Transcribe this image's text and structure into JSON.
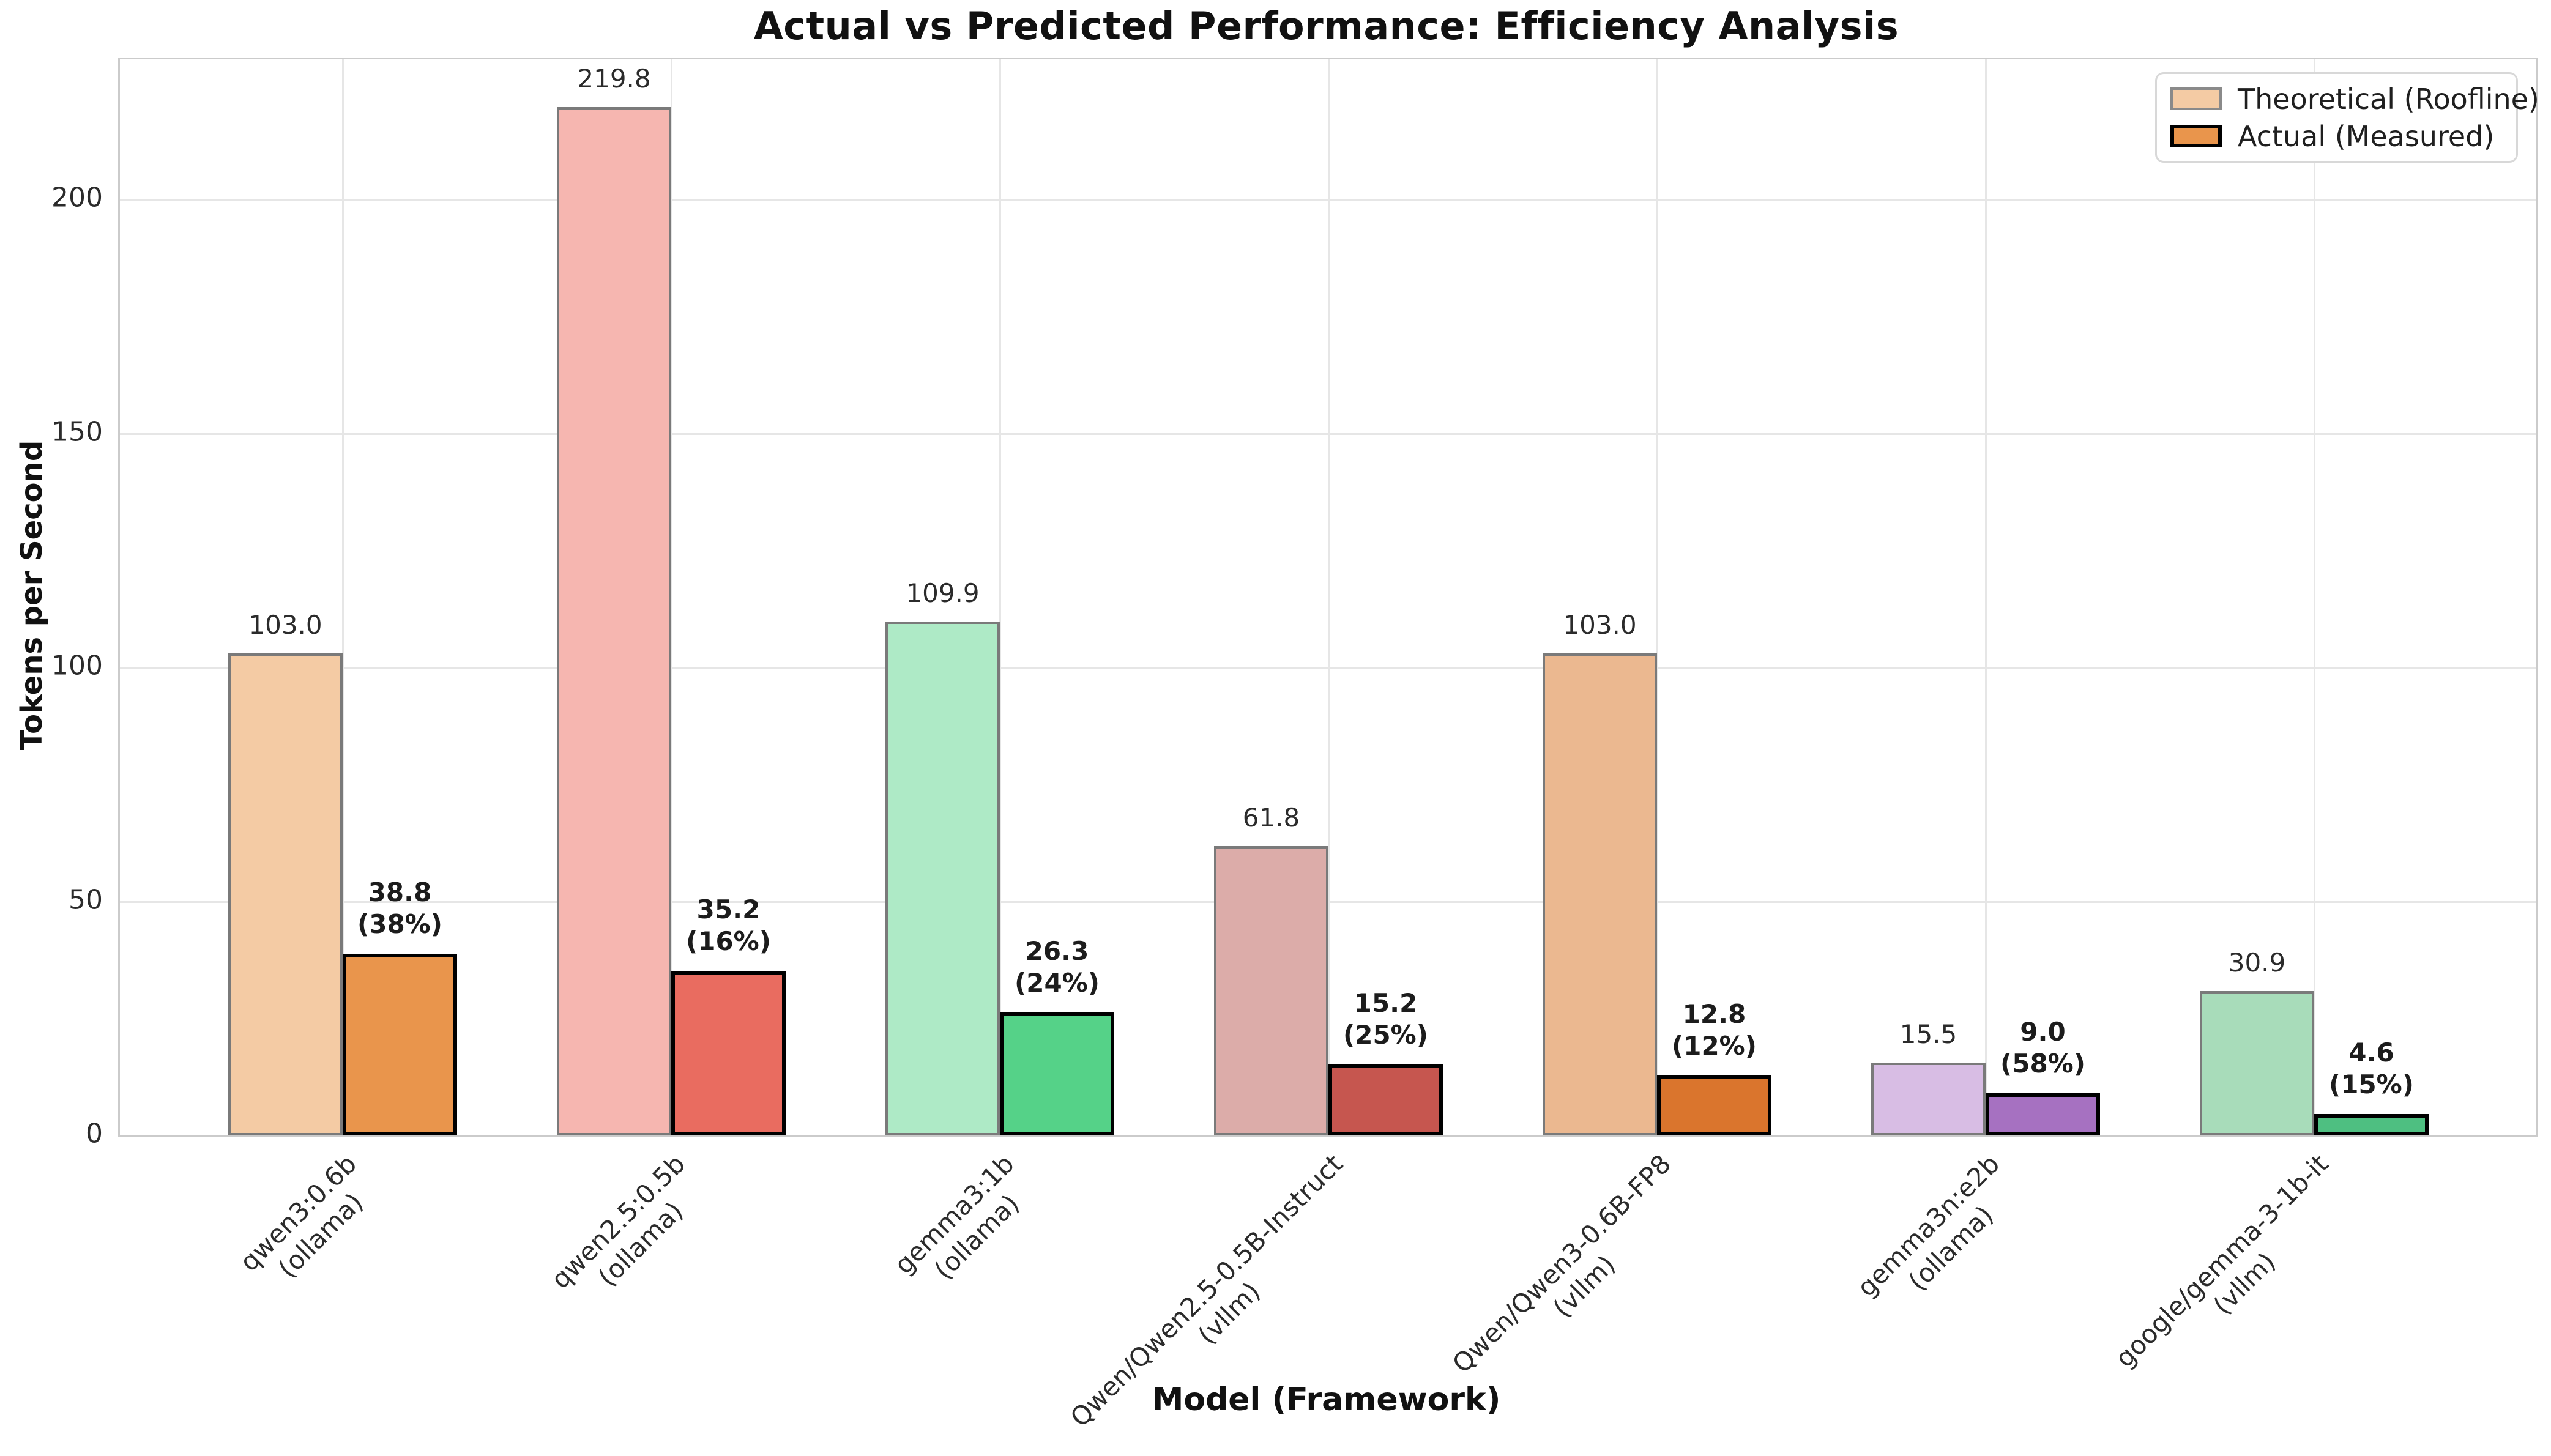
{
  "title": "Actual vs Predicted Performance: Efficiency Analysis",
  "chart_data": {
    "type": "bar",
    "title": "Actual vs Predicted Performance: Efficiency Analysis",
    "xlabel": "Model (Framework)",
    "ylabel": "Tokens per Second",
    "ylim": [
      0,
      230
    ],
    "yticks": [
      0,
      50,
      100,
      150,
      200
    ],
    "grid": "both",
    "legend_position": "upper right",
    "categories": [
      [
        "qwen3:0.6b",
        "(ollama)"
      ],
      [
        "qwen2.5:0.5b",
        "(ollama)"
      ],
      [
        "gemma3:1b",
        "(ollama)"
      ],
      [
        "Qwen/Qwen2.5-0.5B-Instruct",
        "(vllm)"
      ],
      [
        "Qwen/Qwen3-0.6B-FP8",
        "(vllm)"
      ],
      [
        "gemma3n:e2b",
        "(ollama)"
      ],
      [
        "google/gemma-3-1b-it",
        "(vllm)"
      ]
    ],
    "series": [
      {
        "name": "Theoretical (Roofline)",
        "values": [
          103.0,
          219.8,
          109.9,
          61.8,
          103.0,
          15.5,
          30.9
        ],
        "value_labels": [
          "103.0",
          "219.8",
          "109.9",
          "61.8",
          "103.0",
          "15.5",
          "30.9"
        ],
        "colors": [
          "#F4CBA4",
          "#F6B6B0",
          "#AEEAC6",
          "#DCACA9",
          "#EBB890",
          "#D8BDE4",
          "#A8DCBA"
        ],
        "edge_color": "#7a7a7a"
      },
      {
        "name": "Actual (Measured)",
        "values": [
          38.8,
          35.2,
          26.3,
          15.2,
          12.8,
          9.0,
          4.6
        ],
        "value_labels": [
          "38.8",
          "35.2",
          "26.3",
          "15.2",
          "12.8",
          "9.0",
          "4.6"
        ],
        "efficiency_labels": [
          "(38%)",
          "(16%)",
          "(24%)",
          "(25%)",
          "(12%)",
          "(58%)",
          "(15%)"
        ],
        "colors": [
          "#E9954C",
          "#E96C60",
          "#55D288",
          "#C6564F",
          "#DA752D",
          "#A671C1",
          "#4EBF81"
        ],
        "edge_color": "#000000"
      }
    ],
    "legend": {
      "theoretical_label": "Theoretical (Roofline)",
      "actual_label": "Actual (Measured)",
      "theoretical_swatch_color": "#F4CBA4",
      "actual_swatch_color": "#E9954C"
    }
  }
}
